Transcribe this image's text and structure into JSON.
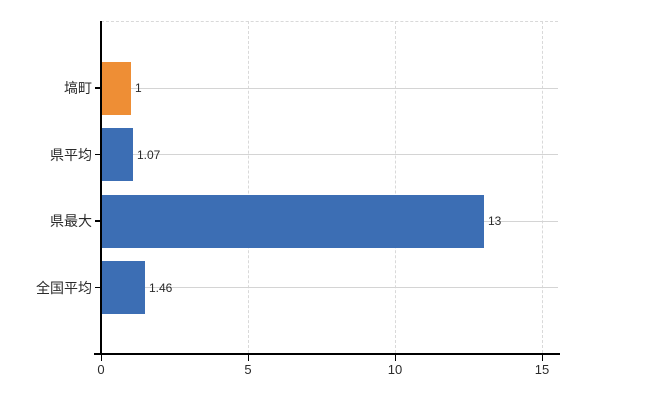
{
  "chart_data": {
    "type": "bar",
    "orientation": "horizontal",
    "title": "",
    "categories": [
      "塙町",
      "県平均",
      "県最大",
      "全国平均"
    ],
    "values": [
      1,
      1.07,
      13,
      1.46
    ],
    "value_labels": [
      "1",
      "1.07",
      "13",
      "1.46"
    ],
    "bar_colors": [
      "#ee8e35",
      "#3c6eb4",
      "#3c6eb4",
      "#3c6eb4"
    ],
    "x_ticks": [
      0,
      5,
      10,
      15
    ],
    "x_tick_labels": [
      "0",
      "5",
      "10",
      "15"
    ],
    "xlim": [
      0,
      15.5
    ],
    "grid": true,
    "legend": false
  },
  "colors": {
    "background": "#ffffff",
    "axis": "#000000",
    "row_gridline": "#d4d4d4",
    "dashed_gridline": "#d9d9d9",
    "text": "#2b2b2b",
    "bar_blue": "#3c6eb4",
    "bar_orange": "#ee8e35"
  }
}
